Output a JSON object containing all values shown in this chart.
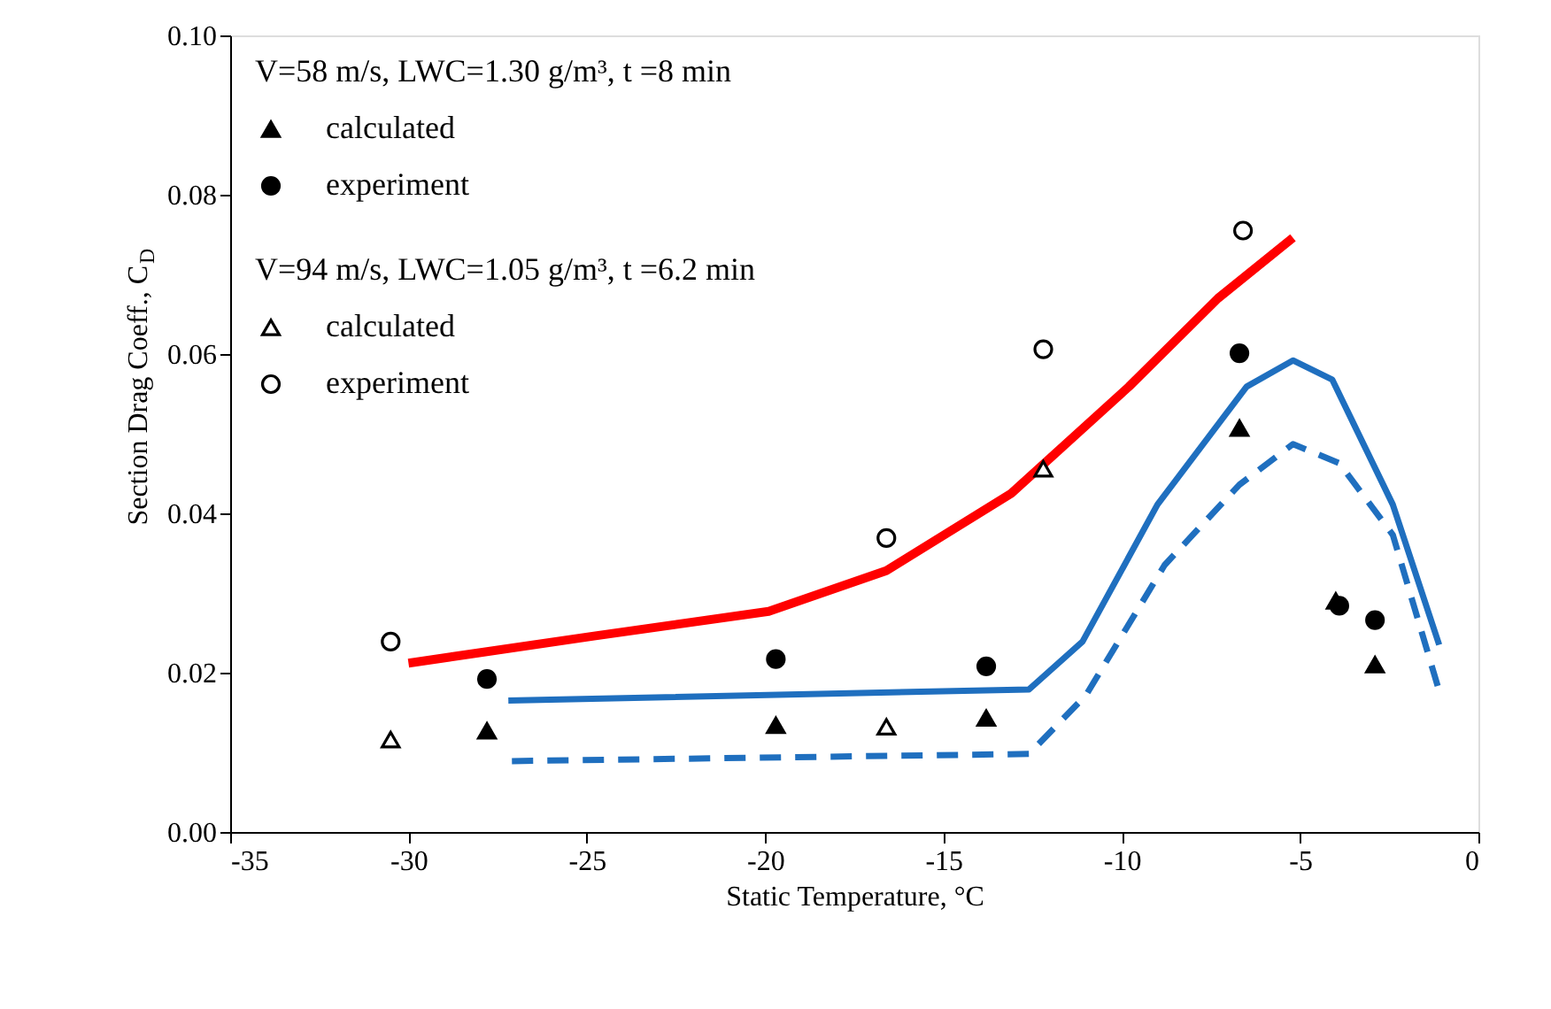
{
  "chart_data": {
    "type": "scatter",
    "xlabel": "Static Temperature, °C",
    "ylabel": "Section Drag Coeff., C$_{D}$",
    "annotations": [
      "V=58 m/s, LWC=1.30 g/m³, t =8 min",
      "V=94 m/s, LWC=1.05 g/m³, t =6.2 min"
    ],
    "xlim": [
      -35,
      0
    ],
    "xticks": [
      -35,
      -30,
      -25,
      -20,
      -15,
      -10,
      -5,
      0
    ],
    "ylim": [
      0,
      0.1
    ],
    "yticks": [
      {
        "value": 0,
        "label": "0.00"
      },
      {
        "value": 0.02,
        "label": "0.02"
      },
      {
        "value": 0.04,
        "label": "0.04"
      },
      {
        "value": 0.06,
        "label": "0.06"
      },
      {
        "value": 0.08,
        "label": "0.08"
      },
      {
        "value": 0.1,
        "label": "0.10"
      }
    ],
    "grid": false,
    "legend": "top left",
    "series": [
      {
        "name": "calculated",
        "marker": "triangle",
        "color": "#000000",
        "x": [
          -27.8,
          -19.7,
          -13.8,
          -6.7,
          -4.0,
          -2.9
        ],
        "values": [
          0.0127,
          0.0134,
          0.0143,
          0.0507,
          0.029,
          0.021
        ]
      },
      {
        "name": "experiment",
        "marker": "circle",
        "color": "#000000",
        "x": [
          -27.8,
          -19.7,
          -13.8,
          -6.7,
          -3.9,
          -2.9
        ],
        "values": [
          0.0192,
          0.0217,
          0.0208,
          0.0601,
          0.0284,
          0.0266
        ]
      },
      {
        "name": "calculated",
        "marker": "triangle",
        "color": "#ffffff",
        "x": [
          -30.5,
          -16.6,
          -12.2
        ],
        "values": [
          0.0116,
          0.0132,
          0.0456
        ]
      },
      {
        "name": "experiment",
        "marker": "circle",
        "color": "#ffffff",
        "x": [
          -30.5,
          -16.6,
          -12.2,
          -6.6
        ],
        "values": [
          0.0239,
          0.0369,
          0.0606,
          0.0755
        ]
      },
      {
        "type": "line",
        "color": "#ff0000",
        "line_style": "solid",
        "x": [
          -30.0,
          -24.8,
          -19.9,
          -16.6,
          -13.1,
          -9.8,
          -7.3,
          -5.2
        ],
        "values": [
          0.0212,
          0.0246,
          0.0277,
          0.0328,
          0.0425,
          0.0559,
          0.067,
          0.0746
        ]
      },
      {
        "type": "line",
        "color": "#1f6fbf",
        "line_style": "solid",
        "x": [
          -27.2,
          -12.6,
          -11.1,
          -9.0,
          -6.5,
          -5.2,
          -4.1,
          -2.4,
          -1.1
        ],
        "values": [
          0.0165,
          0.0179,
          0.0239,
          0.0411,
          0.0559,
          0.0592,
          0.0568,
          0.0411,
          0.0235
        ]
      },
      {
        "type": "line",
        "color": "#1f6fbf",
        "line_style": "dashed",
        "x": [
          -27.1,
          -12.6,
          -11.0,
          -8.8,
          -6.7,
          -5.2,
          -3.9,
          -2.4,
          -1.1
        ],
        "values": [
          0.0089,
          0.0098,
          0.0172,
          0.0335,
          0.0436,
          0.0487,
          0.0463,
          0.0373,
          0.0177
        ]
      }
    ]
  }
}
